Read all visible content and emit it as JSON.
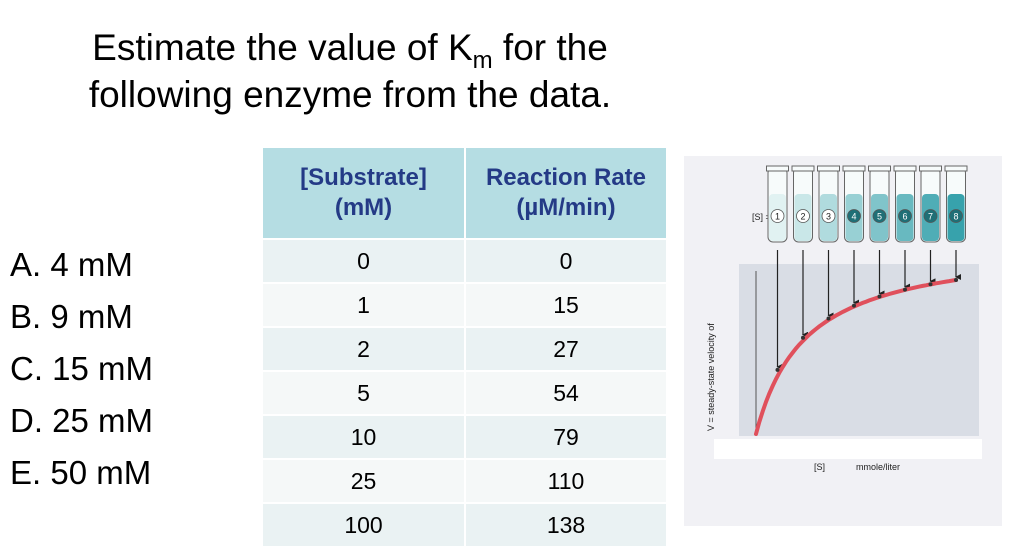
{
  "question": {
    "line1_prefix": "Estimate the value of K",
    "line1_sub": "m",
    "line1_suffix": " for the",
    "line2": "following enzyme from the data."
  },
  "options": [
    {
      "label": "A. 4 mM"
    },
    {
      "label": "B. 9 mM"
    },
    {
      "label": "C. 15 mM"
    },
    {
      "label": "D. 25 mM"
    },
    {
      "label": "E. 50 mM"
    }
  ],
  "table": {
    "headers": [
      {
        "line1": "[Substrate]",
        "line2": "(mM)"
      },
      {
        "line1": "Reaction Rate",
        "line2": "(µM/min)"
      }
    ],
    "rows": [
      [
        "0",
        "0"
      ],
      [
        "1",
        "15"
      ],
      [
        "2",
        "27"
      ],
      [
        "5",
        "54"
      ],
      [
        "10",
        "79"
      ],
      [
        "25",
        "110"
      ],
      [
        "100",
        "138"
      ]
    ],
    "header_color": "#243a86",
    "header_bg": "#b5dde3"
  },
  "figure": {
    "s_label": "[S] =",
    "tube_numbers": [
      "1",
      "2",
      "3",
      "4",
      "5",
      "6",
      "7",
      "8"
    ],
    "y_axis_label": "V = steady-state velocity of",
    "x_axis_label": "[S]",
    "x_units": "mmole/liter",
    "curve_color": "#e0505c"
  }
}
